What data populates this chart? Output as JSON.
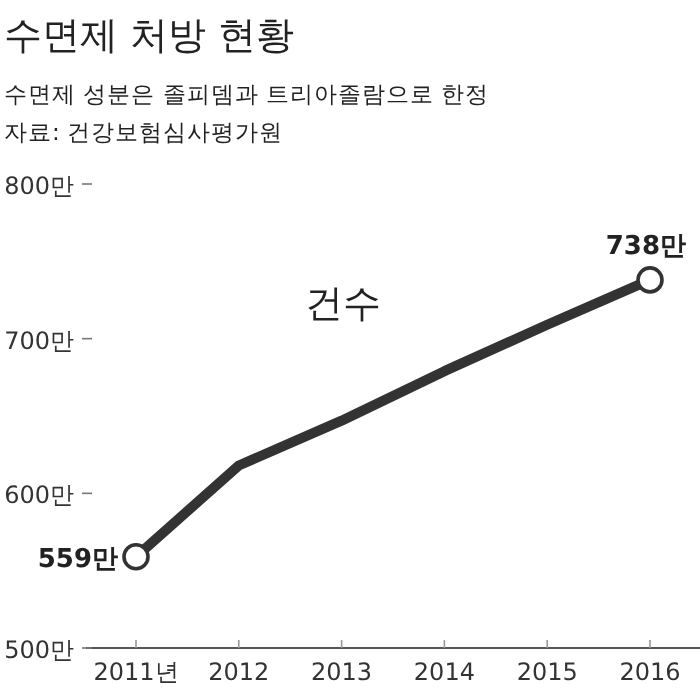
{
  "chart_data": {
    "type": "line",
    "title": "수면제 처방 현황",
    "subtitle": "수면제 성분은 졸피뎀과 트리아졸람으로 한정",
    "annotations": [
      "자료: 건강보험심사평가원"
    ],
    "categories": [
      "2011년",
      "2012",
      "2013",
      "2014",
      "2015",
      "2016"
    ],
    "series": [
      {
        "name": "건수",
        "color": "#333333",
        "values": [
          559,
          618,
          647,
          679,
          709,
          738
        ],
        "value_labels": [
          "559만",
          null,
          null,
          null,
          null,
          "738만"
        ]
      }
    ],
    "ylim": [
      500,
      800
    ],
    "yticks": [
      {
        "value": 500,
        "label": "500만"
      },
      {
        "value": 600,
        "label": "600만"
      },
      {
        "value": 700,
        "label": "700만"
      },
      {
        "value": 800,
        "label": "800만"
      }
    ],
    "grid": false
  }
}
